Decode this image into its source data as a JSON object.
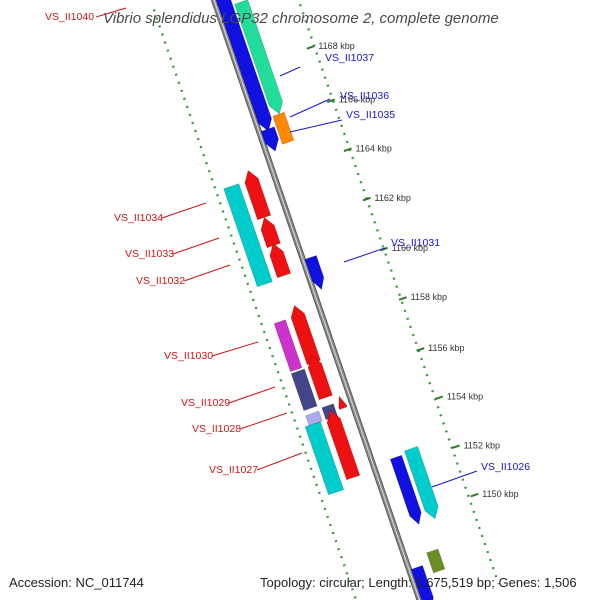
{
  "title": "Vibrio splendidus LGP32 chromosome 2, complete genome",
  "footer": {
    "accession": "Accession: NC_011744",
    "summary": "Topology: circular; Length: 1,675,519 bp; Genes: 1,506"
  },
  "colors": {
    "backbone": "#8a8a8a",
    "ring_dots": "#3a9a3a",
    "forward_label": "#1515cc",
    "reverse_label": "#cc1515"
  },
  "scale_ticks": [
    {
      "label": "1168 kbp"
    },
    {
      "label": "1166 kbp"
    },
    {
      "label": "1164 kbp"
    },
    {
      "label": "1162 kbp"
    },
    {
      "label": "1160 kbp"
    },
    {
      "label": "1158 kbp"
    },
    {
      "label": "1156 kbp"
    },
    {
      "label": "1154 kbp"
    },
    {
      "label": "1152 kbp"
    },
    {
      "label": "1150 kbp"
    }
  ],
  "gene_labels": {
    "forward": [
      "VS_II1037",
      "VS_II1036",
      "VS_II1035",
      "VS_II1031",
      "VS_II1026"
    ],
    "reverse": [
      "VS_II1040",
      "VS_II1034",
      "VS_II1033",
      "VS_II1032",
      "VS_II1030",
      "VS_II1029",
      "VS_II1028",
      "VS_II1027"
    ]
  },
  "feature_colors": [
    "#1010e0",
    "#22dd99",
    "#ff8800",
    "#6b8e23",
    "#ee1111",
    "#00cccc",
    "#444488",
    "#cc33cc",
    "#aaaaee"
  ]
}
